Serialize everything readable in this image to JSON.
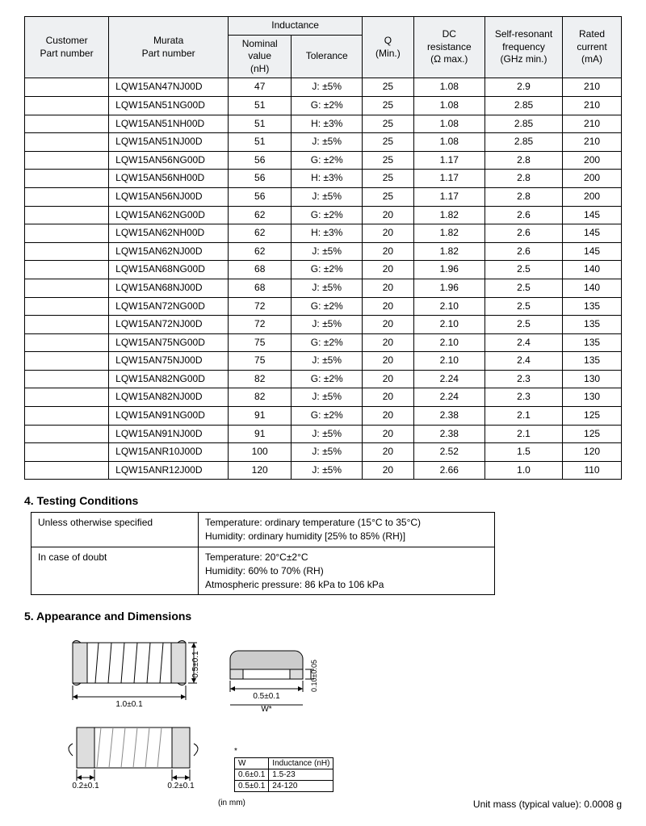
{
  "spec_table": {
    "headers": {
      "customer": "Customer\nPart number",
      "murata": "Murata\nPart number",
      "inductance": "Inductance",
      "nominal": "Nominal\nvalue\n(nH)",
      "tolerance": "Tolerance",
      "q": "Q\n(Min.)",
      "dc": "DC\nresistance\n(Ω max.)",
      "srf": "Self-resonant\nfrequency\n(GHz min.)",
      "rated": "Rated\ncurrent\n(mA)"
    },
    "rows": [
      {
        "cust": "",
        "part": "LQW15AN47NJ00D",
        "nom": "47",
        "tol": "J: ±5%",
        "q": "25",
        "dc": "1.08",
        "srf": "2.9",
        "rated": "210"
      },
      {
        "cust": "",
        "part": "LQW15AN51NG00D",
        "nom": "51",
        "tol": "G: ±2%",
        "q": "25",
        "dc": "1.08",
        "srf": "2.85",
        "rated": "210"
      },
      {
        "cust": "",
        "part": "LQW15AN51NH00D",
        "nom": "51",
        "tol": "H: ±3%",
        "q": "25",
        "dc": "1.08",
        "srf": "2.85",
        "rated": "210"
      },
      {
        "cust": "",
        "part": "LQW15AN51NJ00D",
        "nom": "51",
        "tol": "J: ±5%",
        "q": "25",
        "dc": "1.08",
        "srf": "2.85",
        "rated": "210"
      },
      {
        "cust": "",
        "part": "LQW15AN56NG00D",
        "nom": "56",
        "tol": "G: ±2%",
        "q": "25",
        "dc": "1.17",
        "srf": "2.8",
        "rated": "200"
      },
      {
        "cust": "",
        "part": "LQW15AN56NH00D",
        "nom": "56",
        "tol": "H: ±3%",
        "q": "25",
        "dc": "1.17",
        "srf": "2.8",
        "rated": "200"
      },
      {
        "cust": "",
        "part": "LQW15AN56NJ00D",
        "nom": "56",
        "tol": "J: ±5%",
        "q": "25",
        "dc": "1.17",
        "srf": "2.8",
        "rated": "200"
      },
      {
        "cust": "",
        "part": "LQW15AN62NG00D",
        "nom": "62",
        "tol": "G: ±2%",
        "q": "20",
        "dc": "1.82",
        "srf": "2.6",
        "rated": "145"
      },
      {
        "cust": "",
        "part": "LQW15AN62NH00D",
        "nom": "62",
        "tol": "H: ±3%",
        "q": "20",
        "dc": "1.82",
        "srf": "2.6",
        "rated": "145"
      },
      {
        "cust": "",
        "part": "LQW15AN62NJ00D",
        "nom": "62",
        "tol": "J: ±5%",
        "q": "20",
        "dc": "1.82",
        "srf": "2.6",
        "rated": "145"
      },
      {
        "cust": "",
        "part": "LQW15AN68NG00D",
        "nom": "68",
        "tol": "G: ±2%",
        "q": "20",
        "dc": "1.96",
        "srf": "2.5",
        "rated": "140"
      },
      {
        "cust": "",
        "part": "LQW15AN68NJ00D",
        "nom": "68",
        "tol": "J: ±5%",
        "q": "20",
        "dc": "1.96",
        "srf": "2.5",
        "rated": "140"
      },
      {
        "cust": "",
        "part": "LQW15AN72NG00D",
        "nom": "72",
        "tol": "G: ±2%",
        "q": "20",
        "dc": "2.10",
        "srf": "2.5",
        "rated": "135"
      },
      {
        "cust": "",
        "part": "LQW15AN72NJ00D",
        "nom": "72",
        "tol": "J: ±5%",
        "q": "20",
        "dc": "2.10",
        "srf": "2.5",
        "rated": "135"
      },
      {
        "cust": "",
        "part": "LQW15AN75NG00D",
        "nom": "75",
        "tol": "G: ±2%",
        "q": "20",
        "dc": "2.10",
        "srf": "2.4",
        "rated": "135"
      },
      {
        "cust": "",
        "part": "LQW15AN75NJ00D",
        "nom": "75",
        "tol": "J: ±5%",
        "q": "20",
        "dc": "2.10",
        "srf": "2.4",
        "rated": "135"
      },
      {
        "cust": "",
        "part": "LQW15AN82NG00D",
        "nom": "82",
        "tol": "G: ±2%",
        "q": "20",
        "dc": "2.24",
        "srf": "2.3",
        "rated": "130"
      },
      {
        "cust": "",
        "part": "LQW15AN82NJ00D",
        "nom": "82",
        "tol": "J: ±5%",
        "q": "20",
        "dc": "2.24",
        "srf": "2.3",
        "rated": "130"
      },
      {
        "cust": "",
        "part": "LQW15AN91NG00D",
        "nom": "91",
        "tol": "G: ±2%",
        "q": "20",
        "dc": "2.38",
        "srf": "2.1",
        "rated": "125"
      },
      {
        "cust": "",
        "part": "LQW15AN91NJ00D",
        "nom": "91",
        "tol": "J: ±5%",
        "q": "20",
        "dc": "2.38",
        "srf": "2.1",
        "rated": "125"
      },
      {
        "cust": "",
        "part": "LQW15ANR10J00D",
        "nom": "100",
        "tol": "J: ±5%",
        "q": "20",
        "dc": "2.52",
        "srf": "1.5",
        "rated": "120"
      },
      {
        "cust": "",
        "part": "LQW15ANR12J00D",
        "nom": "120",
        "tol": "J: ±5%",
        "q": "20",
        "dc": "2.66",
        "srf": "1.0",
        "rated": "110"
      }
    ]
  },
  "sections": {
    "testing_title": "4. Testing Conditions",
    "appearance_title": "5. Appearance and Dimensions"
  },
  "testing": {
    "row1_label": "Unless otherwise specified",
    "row1_text": "Temperature: ordinary temperature (15°C to 35°C)\nHumidity: ordinary humidity [25% to 85% (RH)]",
    "row2_label": "In case of doubt",
    "row2_text": "Temperature: 20°C±2°C\nHumidity: 60% to 70% (RH)\nAtmospheric pressure: 86 kPa to 106 kPa"
  },
  "dimensions": {
    "top_len": "1.0±0.1",
    "top_h": "0.5±0.1",
    "side_w": "0.5±0.1",
    "side_h": "0.10±0.05",
    "wlabel": "W*",
    "pad_left": "0.2±0.1",
    "pad_right": "0.2±0.1",
    "star": "*",
    "wtable": {
      "h1": "W",
      "h2": "Inductance (nH)",
      "r1a": "0.6±0.1",
      "r1b": "1.5-23",
      "r2a": "0.5±0.1",
      "r2b": "24-120"
    },
    "inmm": "(in mm)",
    "mass": "Unit mass (typical value): 0.0008 g"
  }
}
